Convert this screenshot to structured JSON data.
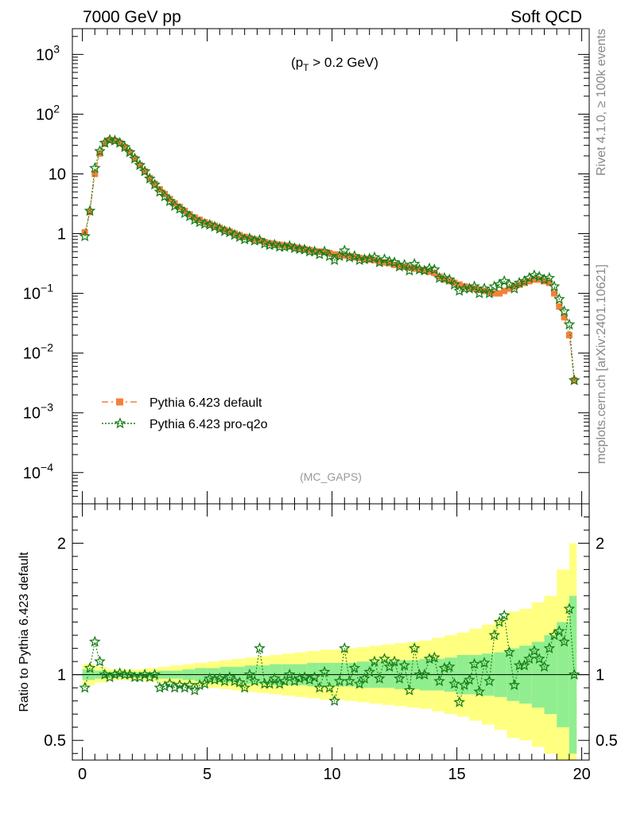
{
  "header": {
    "left_title": "7000 GeV pp",
    "right_title": "Soft QCD",
    "cut_label_prefix": "(p",
    "cut_label_sub": "T",
    "cut_label_suffix": " > 0.2 GeV)",
    "analysis_tag": "(MC_GAPS)",
    "side_label_top": "Rivet 4.1.0, ≥ 100k events",
    "side_label_bottom": "mcplots.cern.ch [arXiv:2401.10621]",
    "ratio_ylabel": "Ratio to Pythia 6.423 default"
  },
  "legend": {
    "entries": [
      {
        "label": "Pythia 6.423 default",
        "color": "#f5803b",
        "marker": "square"
      },
      {
        "label": "Pythia 6.423 pro-q2o",
        "color": "#1a7f1a",
        "marker": "star"
      }
    ]
  },
  "chart_data": [
    {
      "type": "scatter",
      "title": "",
      "xlabel": "",
      "ylabel": "",
      "yscale": "log",
      "xlim": [
        -0.4,
        20.3
      ],
      "ylim": [
        3e-05,
        2700
      ],
      "x_ticks": [
        "0",
        "5",
        "10",
        "15",
        "20"
      ],
      "y_ticks": [
        {
          "base": "10",
          "exp": "−4",
          "value": 0.0001
        },
        {
          "base": "10",
          "exp": "−3",
          "value": 0.001
        },
        {
          "base": "10",
          "exp": "−2",
          "value": 0.01
        },
        {
          "base": "10",
          "exp": "−1",
          "value": 0.1
        },
        {
          "base": "1",
          "exp": "",
          "value": 1
        },
        {
          "base": "10",
          "exp": "",
          "value": 10
        },
        {
          "base": "10",
          "exp": "2",
          "value": 100
        },
        {
          "base": "10",
          "exp": "3",
          "value": 1000
        }
      ],
      "series": [
        {
          "name": "Pythia 6.423 default",
          "x": [
            0.1,
            0.3,
            0.5,
            0.7,
            0.9,
            1.1,
            1.3,
            1.5,
            1.7,
            1.9,
            2.1,
            2.3,
            2.5,
            2.7,
            2.9,
            3.1,
            3.3,
            3.5,
            3.7,
            3.9,
            4.1,
            4.3,
            4.5,
            4.7,
            4.9,
            5.1,
            5.3,
            5.5,
            5.7,
            5.9,
            6.1,
            6.3,
            6.5,
            6.7,
            6.9,
            7.1,
            7.3,
            7.5,
            7.7,
            7.9,
            8.1,
            8.3,
            8.5,
            8.7,
            8.9,
            9.1,
            9.3,
            9.5,
            9.7,
            9.9,
            10.1,
            10.3,
            10.5,
            10.7,
            10.9,
            11.1,
            11.3,
            11.5,
            11.7,
            11.9,
            12.1,
            12.3,
            12.5,
            12.7,
            12.9,
            13.1,
            13.3,
            13.5,
            13.7,
            13.9,
            14.1,
            14.3,
            14.5,
            14.7,
            14.9,
            15.1,
            15.3,
            15.5,
            15.7,
            15.9,
            16.1,
            16.3,
            16.5,
            16.7,
            16.9,
            17.1,
            17.3,
            17.5,
            17.7,
            17.9,
            18.1,
            18.3,
            18.5,
            18.7,
            18.9,
            19.1,
            19.3,
            19.5,
            19.7
          ],
          "values": [
            1.05,
            2.3,
            10,
            22,
            32,
            37,
            36,
            33,
            28,
            23,
            18,
            14,
            11,
            8.5,
            6.8,
            5.5,
            4.6,
            3.8,
            3.2,
            2.8,
            2.4,
            2.1,
            1.85,
            1.7,
            1.55,
            1.45,
            1.35,
            1.25,
            1.15,
            1.08,
            1.0,
            0.94,
            0.88,
            0.84,
            0.8,
            0.76,
            0.72,
            0.69,
            0.67,
            0.65,
            0.63,
            0.61,
            0.59,
            0.57,
            0.55,
            0.53,
            0.51,
            0.5,
            0.49,
            0.47,
            0.45,
            0.44,
            0.43,
            0.42,
            0.4,
            0.39,
            0.38,
            0.37,
            0.36,
            0.34,
            0.33,
            0.32,
            0.3,
            0.29,
            0.28,
            0.27,
            0.26,
            0.25,
            0.24,
            0.23,
            0.22,
            0.19,
            0.17,
            0.16,
            0.15,
            0.14,
            0.13,
            0.125,
            0.12,
            0.115,
            0.11,
            0.105,
            0.1,
            0.1,
            0.11,
            0.12,
            0.13,
            0.14,
            0.15,
            0.16,
            0.17,
            0.17,
            0.16,
            0.15,
            0.1,
            0.06,
            0.04,
            0.02,
            0.0035
          ],
          "color": "#f5803b"
        },
        {
          "name": "Pythia 6.423 pro-q2o",
          "x": [
            0.1,
            0.3,
            0.5,
            0.7,
            0.9,
            1.1,
            1.3,
            1.5,
            1.7,
            1.9,
            2.1,
            2.3,
            2.5,
            2.7,
            2.9,
            3.1,
            3.3,
            3.5,
            3.7,
            3.9,
            4.1,
            4.3,
            4.5,
            4.7,
            4.9,
            5.1,
            5.3,
            5.5,
            5.7,
            5.9,
            6.1,
            6.3,
            6.5,
            6.7,
            6.9,
            7.1,
            7.3,
            7.5,
            7.7,
            7.9,
            8.1,
            8.3,
            8.5,
            8.7,
            8.9,
            9.1,
            9.3,
            9.5,
            9.7,
            9.9,
            10.1,
            10.3,
            10.5,
            10.7,
            10.9,
            11.1,
            11.3,
            11.5,
            11.7,
            11.9,
            12.1,
            12.3,
            12.5,
            12.7,
            12.9,
            13.1,
            13.3,
            13.5,
            13.7,
            13.9,
            14.1,
            14.3,
            14.5,
            14.7,
            14.9,
            15.1,
            15.3,
            15.5,
            15.7,
            15.9,
            16.1,
            16.3,
            16.5,
            16.7,
            16.9,
            17.1,
            17.3,
            17.5,
            17.7,
            17.9,
            18.1,
            18.3,
            18.5,
            18.7,
            18.9,
            19.1,
            19.3,
            19.5,
            19.7
          ],
          "values": [
            0.9,
            2.4,
            12.5,
            24,
            33,
            37,
            36,
            33,
            28,
            23,
            18,
            14,
            11,
            8.3,
            6.6,
            5.0,
            4.2,
            3.5,
            2.9,
            2.6,
            2.2,
            1.95,
            1.7,
            1.55,
            1.45,
            1.4,
            1.3,
            1.2,
            1.1,
            1.05,
            0.95,
            0.88,
            0.8,
            0.83,
            0.76,
            0.78,
            0.68,
            0.64,
            0.65,
            0.6,
            0.6,
            0.62,
            0.57,
            0.55,
            0.54,
            0.5,
            0.5,
            0.45,
            0.5,
            0.42,
            0.36,
            0.42,
            0.52,
            0.4,
            0.42,
            0.36,
            0.37,
            0.38,
            0.4,
            0.33,
            0.37,
            0.34,
            0.33,
            0.28,
            0.3,
            0.24,
            0.31,
            0.25,
            0.24,
            0.26,
            0.25,
            0.18,
            0.18,
            0.17,
            0.14,
            0.11,
            0.12,
            0.12,
            0.13,
            0.1,
            0.12,
            0.1,
            0.13,
            0.14,
            0.16,
            0.14,
            0.12,
            0.15,
            0.16,
            0.18,
            0.2,
            0.19,
            0.17,
            0.18,
            0.13,
            0.08,
            0.05,
            0.03,
            0.0035
          ],
          "color": "#1a7f1a"
        }
      ]
    },
    {
      "type": "scatter",
      "title": "",
      "xlabel": "",
      "ylabel": "Ratio to Pythia 6.423 default",
      "xlim": [
        -0.4,
        20.3
      ],
      "ylim": [
        0.35,
        2.3
      ],
      "x_ticks": [
        "0",
        "5",
        "10",
        "15",
        "20"
      ],
      "y_ticks": [
        "0.5",
        "1",
        "2"
      ],
      "band_x": [
        0,
        0.5,
        1,
        1.5,
        2,
        2.5,
        3,
        3.5,
        4,
        4.5,
        5,
        5.5,
        6,
        6.5,
        7,
        7.5,
        8,
        8.5,
        9,
        9.5,
        10,
        10.5,
        11,
        11.5,
        12,
        12.5,
        13,
        13.5,
        14,
        14.5,
        15,
        15.5,
        16,
        16.5,
        17,
        17.5,
        18,
        18.5,
        19,
        19.5,
        19.8
      ],
      "band_inner_halfwidth": [
        0.04,
        0.03,
        0.02,
        0.02,
        0.02,
        0.02,
        0.03,
        0.03,
        0.04,
        0.05,
        0.05,
        0.06,
        0.06,
        0.07,
        0.07,
        0.08,
        0.08,
        0.08,
        0.09,
        0.09,
        0.09,
        0.09,
        0.1,
        0.1,
        0.1,
        0.11,
        0.11,
        0.12,
        0.12,
        0.13,
        0.15,
        0.15,
        0.16,
        0.17,
        0.2,
        0.22,
        0.25,
        0.3,
        0.4,
        0.6,
        0.8
      ],
      "band_outer_halfwidth": [
        0.08,
        0.06,
        0.04,
        0.04,
        0.04,
        0.05,
        0.06,
        0.07,
        0.08,
        0.09,
        0.1,
        0.11,
        0.12,
        0.13,
        0.14,
        0.15,
        0.16,
        0.17,
        0.18,
        0.19,
        0.19,
        0.2,
        0.21,
        0.22,
        0.23,
        0.24,
        0.25,
        0.26,
        0.28,
        0.3,
        0.32,
        0.35,
        0.38,
        0.42,
        0.48,
        0.5,
        0.55,
        0.6,
        0.8,
        1.0,
        1.3
      ],
      "series": [
        {
          "name": "Pythia 6.423 pro-q2o",
          "x": [
            0.1,
            0.3,
            0.5,
            0.7,
            0.9,
            1.1,
            1.3,
            1.5,
            1.7,
            1.9,
            2.1,
            2.3,
            2.5,
            2.7,
            2.9,
            3.1,
            3.3,
            3.5,
            3.7,
            3.9,
            4.1,
            4.3,
            4.5,
            4.7,
            4.9,
            5.1,
            5.3,
            5.5,
            5.7,
            5.9,
            6.1,
            6.3,
            6.5,
            6.7,
            6.9,
            7.1,
            7.3,
            7.5,
            7.7,
            7.9,
            8.1,
            8.3,
            8.5,
            8.7,
            8.9,
            9.1,
            9.3,
            9.5,
            9.7,
            9.9,
            10.1,
            10.3,
            10.5,
            10.7,
            10.9,
            11.1,
            11.3,
            11.5,
            11.7,
            11.9,
            12.1,
            12.3,
            12.5,
            12.7,
            12.9,
            13.1,
            13.3,
            13.5,
            13.7,
            13.9,
            14.1,
            14.3,
            14.5,
            14.7,
            14.9,
            15.1,
            15.3,
            15.5,
            15.7,
            15.9,
            16.1,
            16.3,
            16.5,
            16.7,
            16.9,
            17.1,
            17.3,
            17.5,
            17.7,
            17.9,
            18.1,
            18.3,
            18.5,
            18.7,
            18.9,
            19.1,
            19.3,
            19.5,
            19.7
          ],
          "values": [
            0.9,
            1.05,
            1.25,
            1.1,
            1.0,
            0.98,
            1.0,
            1.01,
            1.0,
            1.0,
            0.98,
            0.98,
            1.0,
            0.98,
            1.0,
            0.9,
            0.91,
            0.93,
            0.9,
            0.92,
            0.9,
            0.92,
            0.88,
            0.92,
            0.93,
            0.97,
            0.96,
            0.97,
            0.95,
            0.98,
            0.95,
            0.94,
            0.9,
            1.0,
            0.95,
            1.2,
            0.93,
            0.93,
            0.97,
            0.93,
            0.95,
            1.0,
            0.95,
            0.97,
            0.98,
            0.96,
            0.98,
            0.9,
            1.02,
            0.9,
            0.8,
            0.95,
            1.2,
            0.95,
            1.05,
            0.93,
            0.97,
            1.02,
            1.1,
            0.97,
            1.12,
            1.06,
            1.1,
            0.97,
            1.07,
            0.88,
            1.2,
            1.0,
            1.0,
            1.12,
            1.13,
            0.95,
            1.05,
            1.06,
            0.93,
            0.79,
            0.92,
            0.96,
            1.08,
            0.87,
            1.09,
            0.95,
            1.3,
            1.4,
            1.45,
            1.17,
            0.92,
            1.07,
            1.07,
            1.12,
            1.18,
            1.12,
            1.06,
            1.2,
            1.3,
            1.33,
            1.25,
            1.5,
            1.0
          ],
          "color": "#1a7f1a"
        }
      ]
    }
  ]
}
